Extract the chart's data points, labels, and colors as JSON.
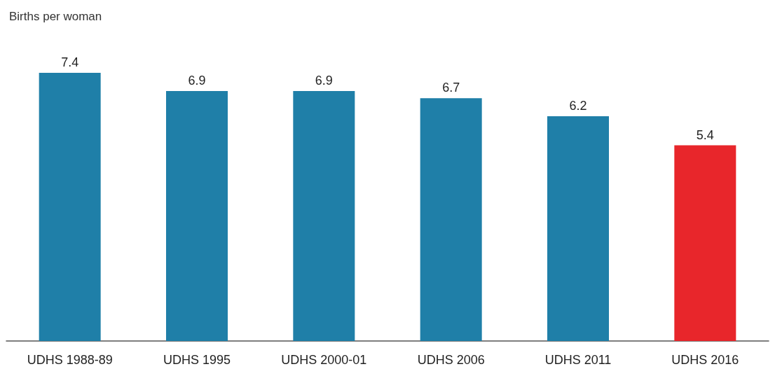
{
  "chart_data": {
    "type": "bar",
    "ylabel": "Births per woman",
    "categories": [
      "UDHS 1988-89",
      "UDHS 1995",
      "UDHS 2000-01",
      "UDHS 2006",
      "UDHS 2011",
      "UDHS 2016"
    ],
    "values": [
      7.4,
      6.9,
      6.9,
      6.7,
      6.2,
      5.4
    ],
    "colors": [
      "#1f7fa8",
      "#1f7fa8",
      "#1f7fa8",
      "#1f7fa8",
      "#1f7fa8",
      "#e8262b"
    ],
    "data_labels": true
  }
}
